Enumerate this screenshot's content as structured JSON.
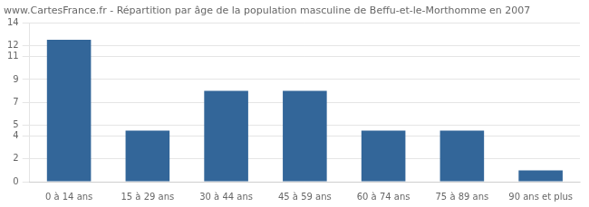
{
  "chart_data": {
    "type": "bar",
    "title": "www.CartesFrance.fr - Répartition par âge de la population masculine de Beffu-et-le-Morthomme en 2007",
    "categories": [
      "0 à 14 ans",
      "15 à 29 ans",
      "30 à 44 ans",
      "45 à 59 ans",
      "60 à 74 ans",
      "75 à 89 ans",
      "90 ans et plus"
    ],
    "values": [
      12.5,
      4.5,
      8.0,
      8.0,
      4.5,
      4.5,
      1.0
    ],
    "color": "#336699",
    "ylim": [
      0,
      14
    ],
    "yticks": [
      0,
      2,
      4,
      5,
      7,
      9,
      11,
      12,
      14
    ],
    "grid": true
  }
}
